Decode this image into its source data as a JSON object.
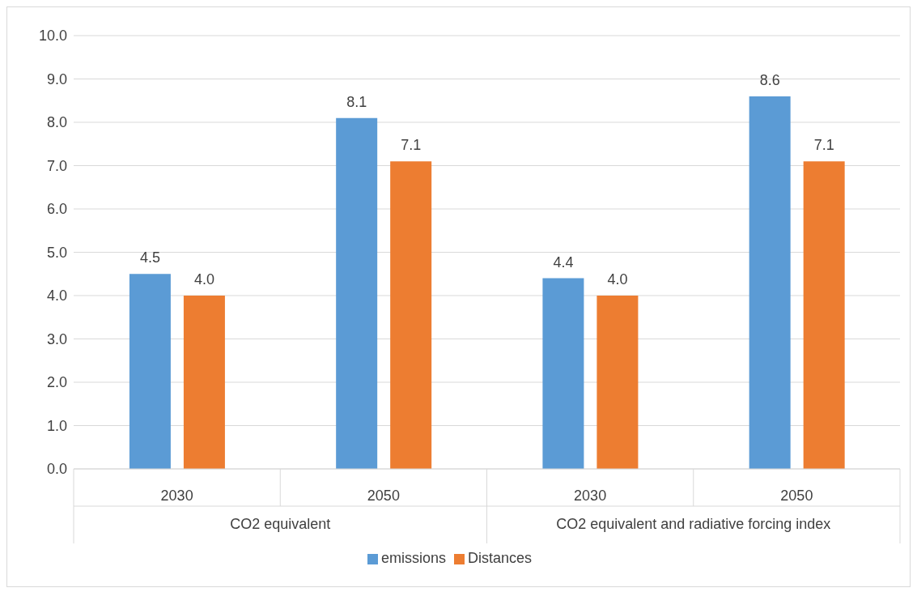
{
  "chart_data": {
    "type": "bar",
    "categories": [
      "2030",
      "2050",
      "2030",
      "2050"
    ],
    "series": [
      {
        "name": "emissions",
        "color": "#5b9bd5",
        "values": [
          4.5,
          8.1,
          4.4,
          8.6
        ],
        "value_labels": [
          "4.5",
          "8.1",
          "4.4",
          "8.6"
        ]
      },
      {
        "name": "Distances",
        "color": "#ed7d31",
        "values": [
          4.0,
          7.1,
          4.0,
          7.1
        ],
        "value_labels": [
          "4.0",
          "7.1",
          "4.0",
          "7.1"
        ]
      }
    ],
    "annotations": [
      "CO2 equivalent",
      "CO2 equivalent and radiative forcing index"
    ],
    "ylim": [
      0,
      10
    ],
    "yticks": [
      {
        "value": 0,
        "label": "0.0"
      },
      {
        "value": 1,
        "label": "1.0"
      },
      {
        "value": 2,
        "label": "2.0"
      },
      {
        "value": 3,
        "label": "3.0"
      },
      {
        "value": 4,
        "label": "4.0"
      },
      {
        "value": 5,
        "label": "5.0"
      },
      {
        "value": 6,
        "label": "6.0"
      },
      {
        "value": 7,
        "label": "7.0"
      },
      {
        "value": 8,
        "label": "8.0"
      },
      {
        "value": 9,
        "label": "9.0"
      },
      {
        "value": 10,
        "label": "10.0"
      }
    ],
    "grid": "y",
    "legend": "bottom"
  }
}
